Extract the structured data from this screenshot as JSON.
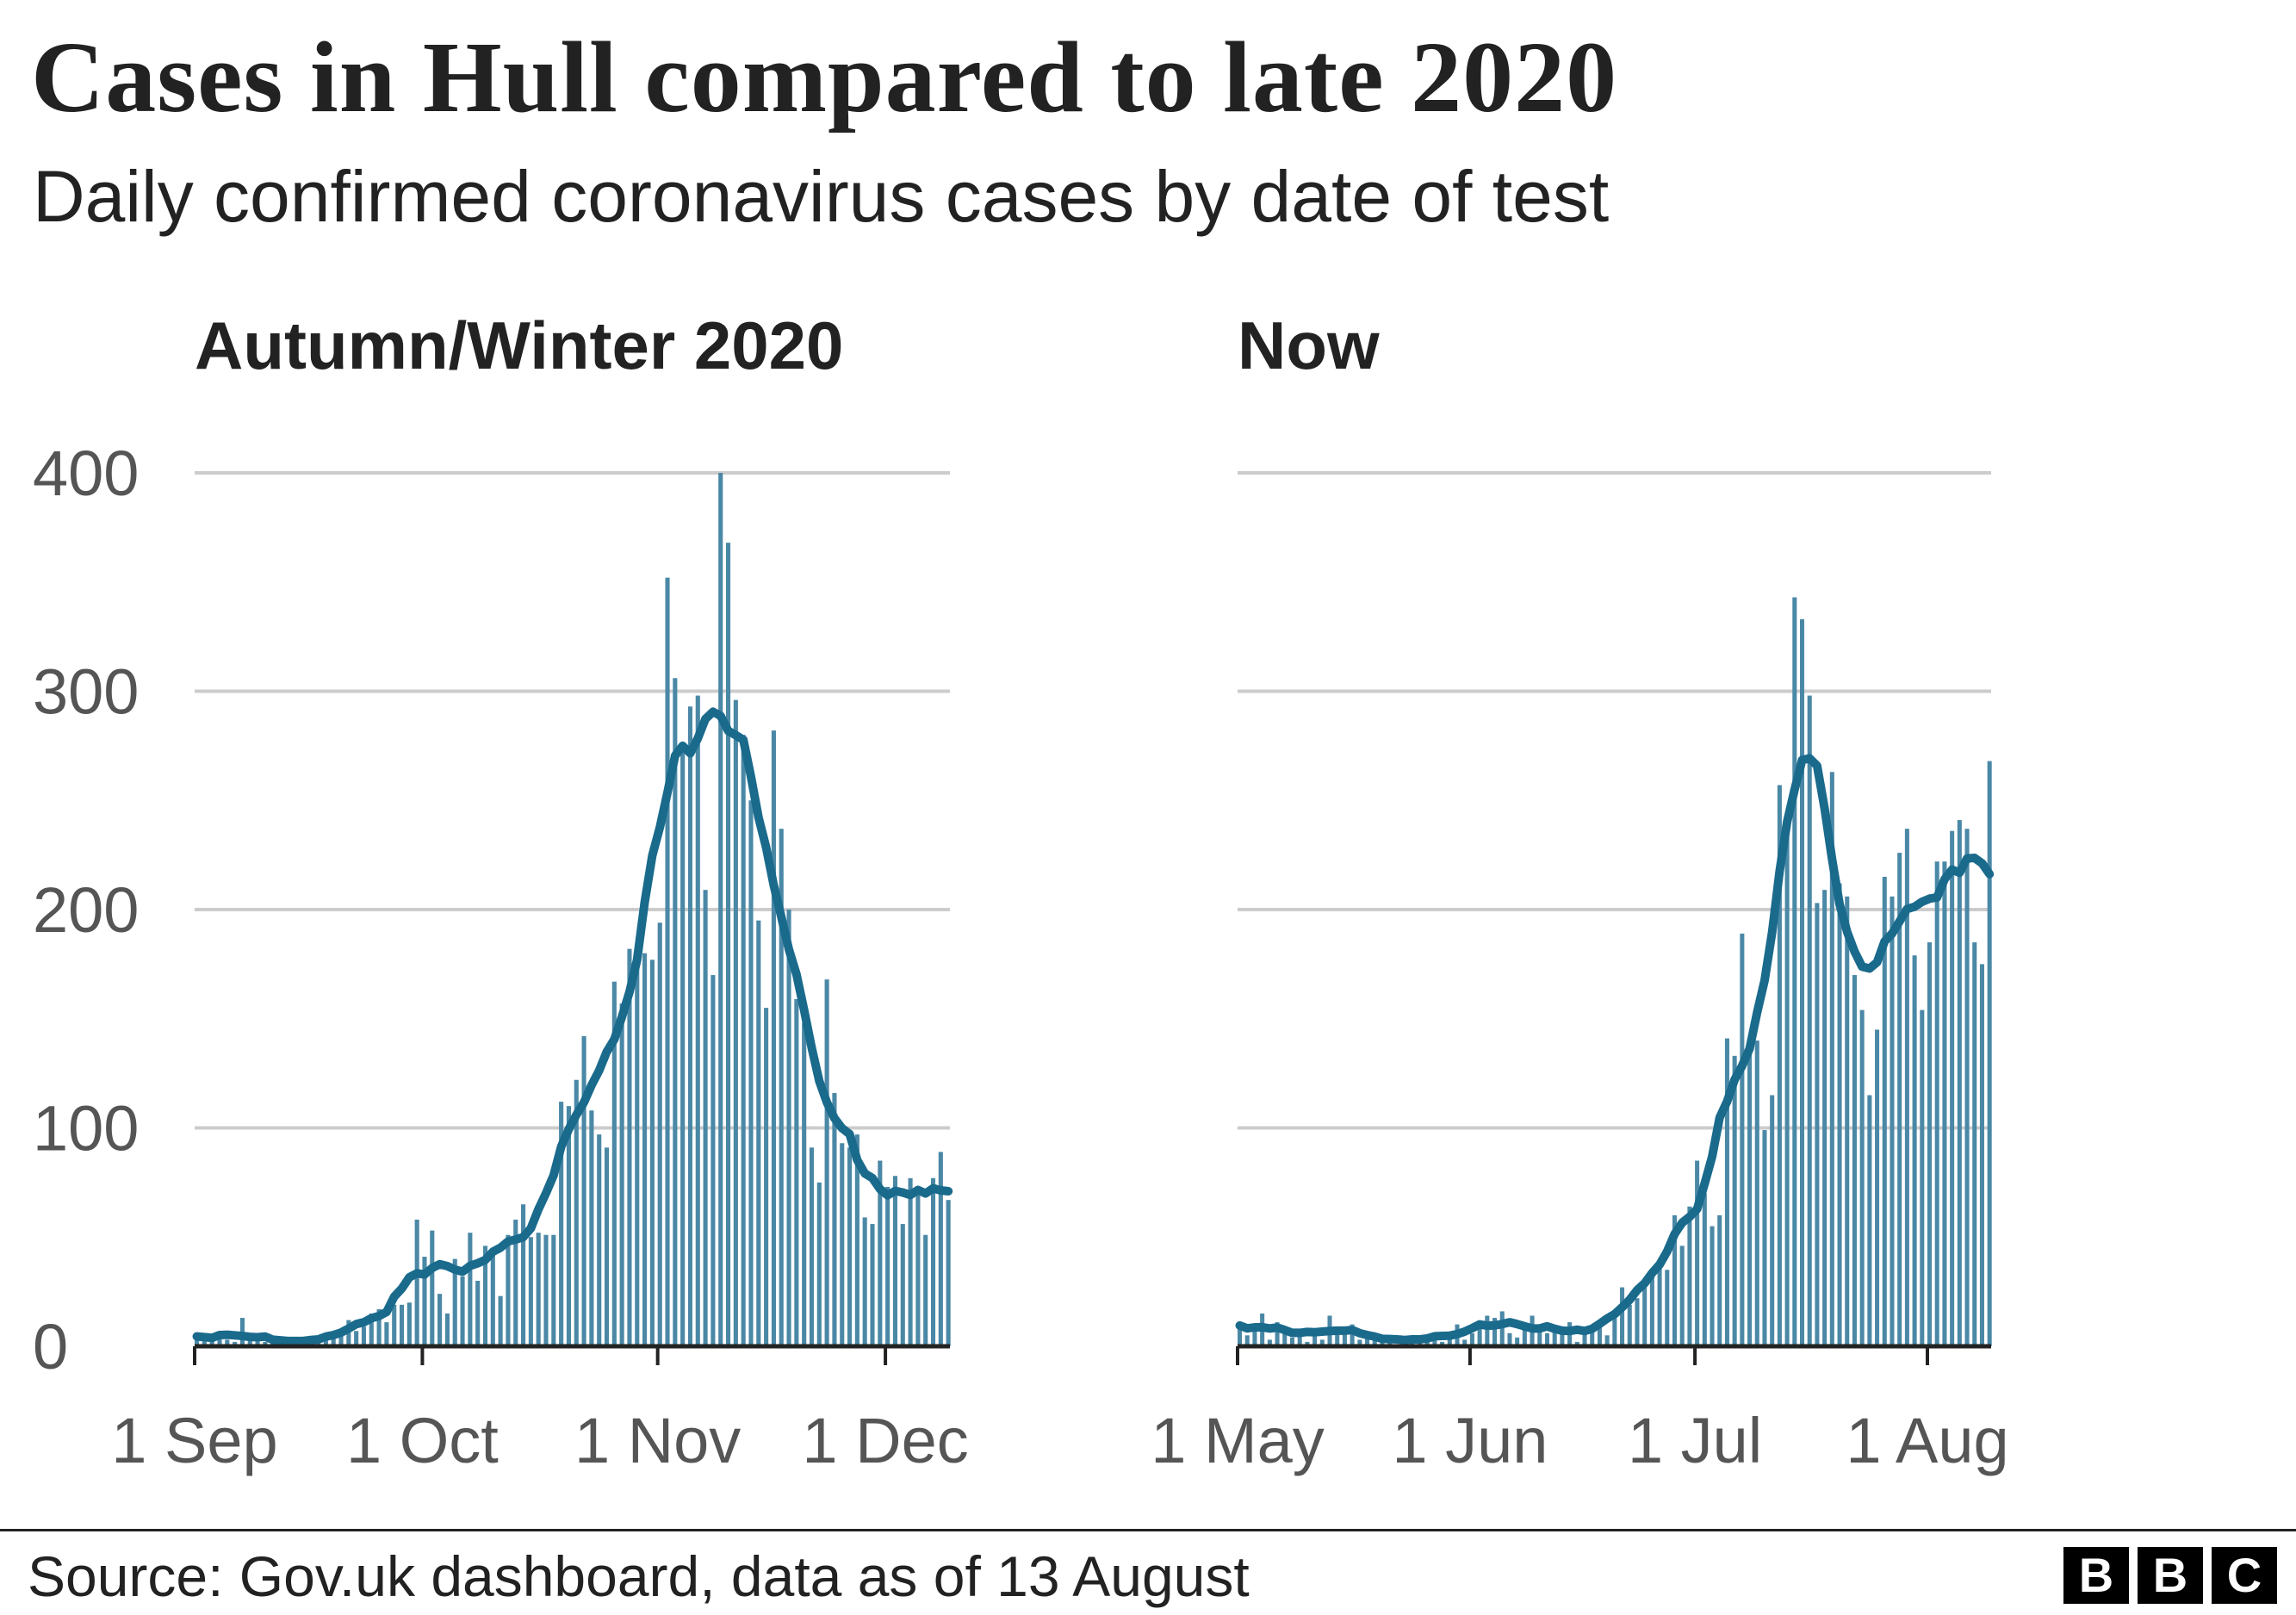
{
  "header": {
    "title": "Cases in Hull compared to late 2020",
    "subtitle": "Daily confirmed coronavirus cases by date of test"
  },
  "footer": {
    "source": "Source: Gov.uk dashboard, data as of 13 August",
    "logo_letters": [
      "B",
      "B",
      "C"
    ]
  },
  "colors": {
    "bar": "#4a88a6",
    "line": "#1a6a8c",
    "grid": "#cccccc"
  },
  "chart_data": [
    {
      "type": "bar",
      "title": "Autumn/Winter 2020",
      "xlabel": "",
      "ylabel": "",
      "ylim": [
        0,
        400
      ],
      "yticks": [
        "0",
        "100",
        "200",
        "300",
        "400"
      ],
      "xticks": [
        {
          "label": "1 Sep",
          "day": 0
        },
        {
          "label": "1 Oct",
          "day": 30
        },
        {
          "label": "1 Nov",
          "day": 61
        },
        {
          "label": "1 Dec",
          "day": 91
        }
      ],
      "overlay": "7-day rolling average line",
      "values": [
        3,
        5,
        4,
        6,
        3,
        2,
        13,
        4,
        3,
        2,
        3,
        2,
        4,
        3,
        2,
        1,
        2,
        3,
        5,
        6,
        12,
        7,
        9,
        15,
        17,
        11,
        19,
        19,
        20,
        58,
        41,
        53,
        24,
        15,
        40,
        32,
        52,
        30,
        46,
        43,
        23,
        51,
        58,
        65,
        50,
        52,
        51,
        51,
        112,
        110,
        122,
        142,
        108,
        97,
        91,
        167,
        157,
        182,
        182,
        180,
        177,
        194,
        352,
        306,
        273,
        293,
        298,
        209,
        170,
        400,
        368,
        296,
        280,
        250,
        195,
        155,
        282,
        237,
        200,
        159,
        148,
        91,
        75,
        168,
        116,
        93,
        91,
        97,
        59,
        56,
        85,
        73,
        78,
        56,
        77,
        73,
        51,
        77,
        89,
        67
      ]
    },
    {
      "type": "bar",
      "title": "Now",
      "xlabel": "",
      "ylabel": "",
      "ylim": [
        0,
        400
      ],
      "yticks": [
        "0",
        "100",
        "200",
        "300",
        "400"
      ],
      "xticks": [
        {
          "label": "1 May",
          "day": 0
        },
        {
          "label": "1 Jun",
          "day": 31
        },
        {
          "label": "1 Jul",
          "day": 61
        },
        {
          "label": "1 Aug",
          "day": 92
        }
      ],
      "overlay": "7-day rolling average line",
      "values": [
        8,
        5,
        10,
        15,
        3,
        11,
        9,
        4,
        8,
        2,
        6,
        3,
        14,
        8,
        6,
        10,
        3,
        6,
        5,
        4,
        2,
        1,
        3,
        2,
        5,
        3,
        6,
        2,
        4,
        10,
        3,
        6,
        8,
        14,
        13,
        16,
        6,
        4,
        10,
        14,
        8,
        6,
        9,
        6,
        11,
        2,
        8,
        7,
        10,
        5,
        13,
        27,
        19,
        22,
        29,
        34,
        36,
        35,
        60,
        46,
        64,
        85,
        70,
        55,
        60,
        141,
        133,
        189,
        137,
        140,
        99,
        115,
        257,
        236,
        343,
        333,
        298,
        203,
        209,
        263,
        212,
        206,
        170,
        154,
        115,
        145,
        215,
        206,
        226,
        237,
        179,
        154,
        185,
        222,
        222,
        236,
        241,
        237,
        185,
        175,
        268
      ]
    }
  ]
}
